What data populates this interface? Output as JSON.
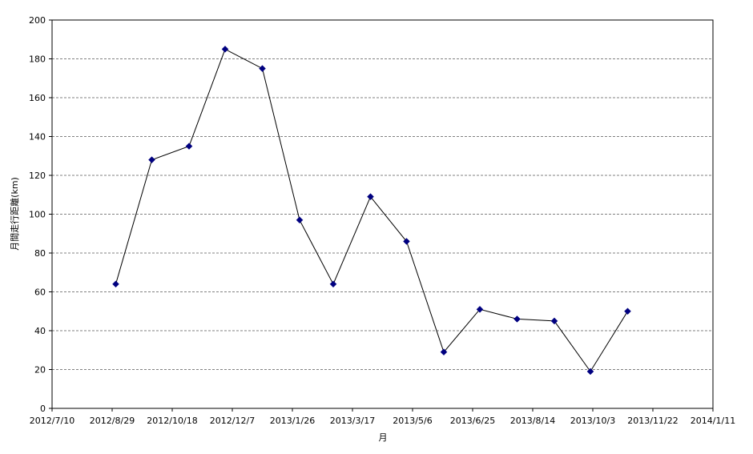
{
  "chart_data": {
    "type": "line",
    "xlabel": "月",
    "ylabel": "月間走行距離(km)",
    "ylim": [
      0,
      200
    ],
    "yticks": [
      0,
      20,
      40,
      60,
      80,
      100,
      120,
      140,
      160,
      180,
      200
    ],
    "xlim": [
      "2012-07-10",
      "2014-01-11"
    ],
    "xtick_labels": [
      "2012/7/10",
      "2012/8/29",
      "2012/10/18",
      "2012/12/7",
      "2013/1/26",
      "2013/3/17",
      "2013/5/6",
      "2013/6/25",
      "2013/8/14",
      "2013/10/3",
      "2013/11/22",
      "2014/1/11"
    ],
    "xticks": [
      "2012-07-10",
      "2012-08-29",
      "2012-10-18",
      "2012-12-07",
      "2013-01-26",
      "2013-03-17",
      "2013-05-06",
      "2013-06-25",
      "2013-08-14",
      "2013-10-03",
      "2013-11-22",
      "2014-01-11"
    ],
    "grid": "horizontal dashed",
    "series": [
      {
        "color": "#000080",
        "marker": "diamond",
        "x": [
          "2012-09-01",
          "2012-10-01",
          "2012-11-01",
          "2012-12-01",
          "2013-01-01",
          "2013-02-01",
          "2013-03-01",
          "2013-04-01",
          "2013-05-01",
          "2013-06-01",
          "2013-07-01",
          "2013-08-01",
          "2013-09-01",
          "2013-10-01",
          "2013-11-01"
        ],
        "values": [
          64,
          128,
          135,
          185,
          175,
          97,
          64,
          109,
          86,
          29,
          51,
          46,
          45,
          19,
          50
        ]
      }
    ]
  }
}
